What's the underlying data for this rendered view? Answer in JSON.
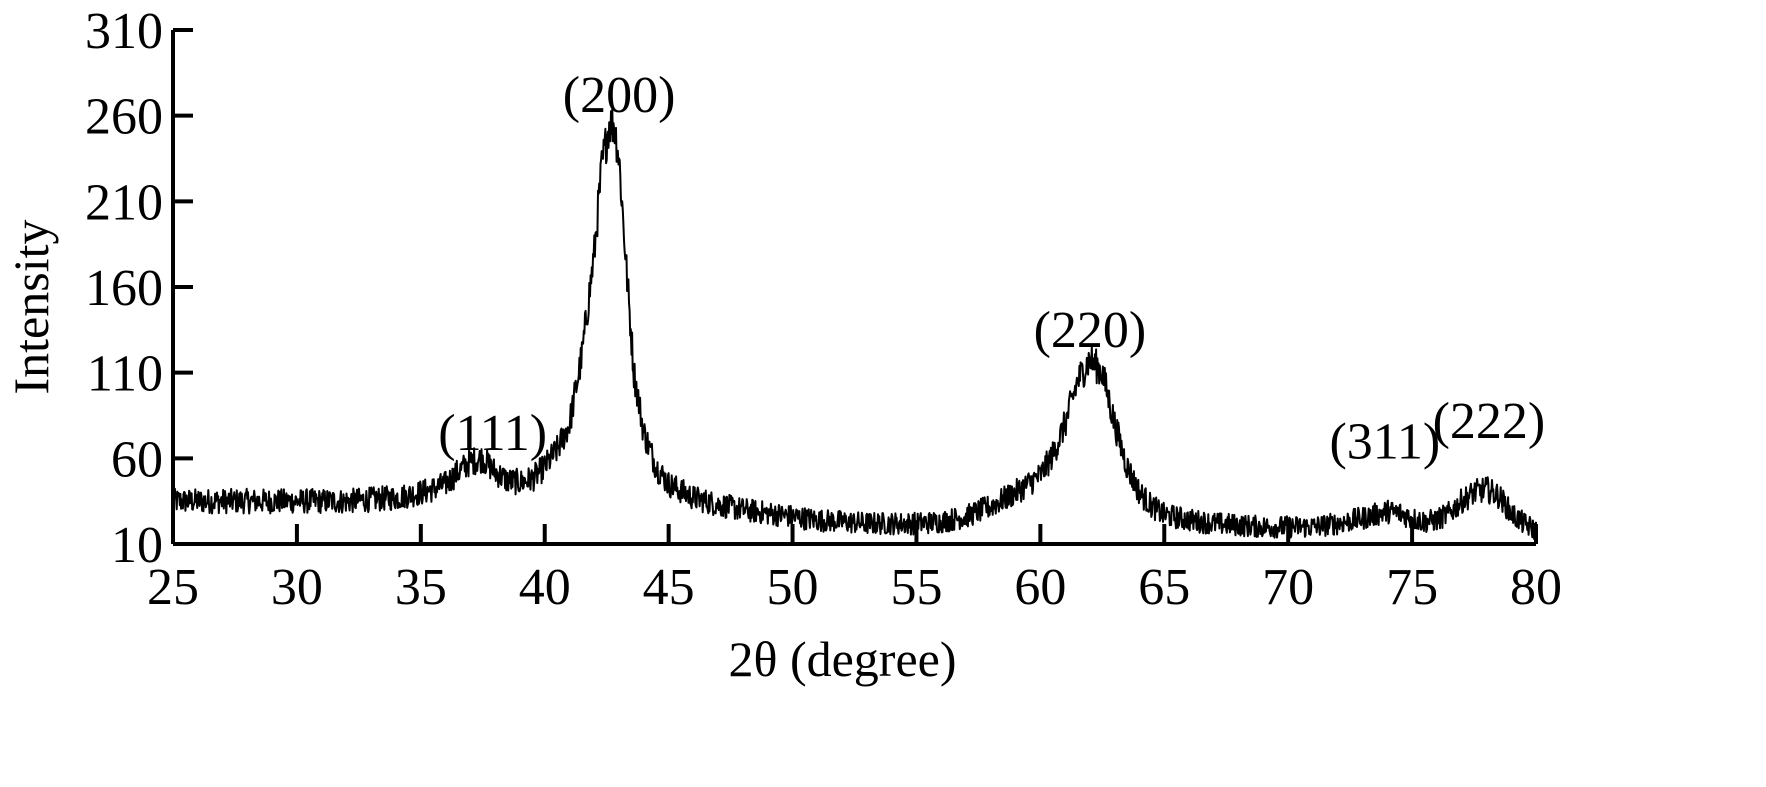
{
  "chart_data": {
    "type": "line",
    "title": "",
    "xlabel": "2θ (degree)",
    "ylabel": "Intensity",
    "xlim": [
      25,
      80
    ],
    "ylim": [
      10,
      310
    ],
    "x_ticks": [
      25,
      30,
      35,
      40,
      45,
      50,
      55,
      60,
      65,
      70,
      75,
      80
    ],
    "y_ticks": [
      10,
      60,
      110,
      160,
      210,
      260,
      310
    ],
    "grid": false,
    "legend": "none",
    "line_color": "#000000",
    "series": [
      {
        "x": [
          25,
          26,
          27,
          28,
          29,
          30,
          31,
          32,
          33,
          34,
          35,
          35.5,
          36,
          36.5,
          37,
          37.5,
          38,
          38.5,
          39,
          39.5,
          40,
          40.5,
          41,
          41.5,
          42,
          42.3,
          42.6,
          42.8,
          43,
          43.3,
          43.6,
          44,
          44.5,
          45,
          46,
          47,
          48,
          49,
          50,
          51,
          52,
          53,
          54,
          55,
          56,
          57,
          58,
          59,
          60,
          60.5,
          61,
          61.5,
          62,
          62.5,
          63,
          63.5,
          64,
          64.5,
          65,
          66,
          67,
          68,
          69,
          70,
          71,
          72,
          73,
          73.5,
          74,
          74.5,
          75,
          75.5,
          76,
          76.5,
          77,
          77.5,
          78,
          78.5,
          79,
          79.5,
          80
        ],
        "y": [
          35,
          35,
          35,
          35,
          35,
          35,
          35,
          35,
          36,
          37,
          40,
          42,
          45,
          52,
          58,
          60,
          52,
          47,
          46,
          48,
          55,
          65,
          80,
          120,
          180,
          230,
          255,
          255,
          235,
          170,
          110,
          75,
          55,
          45,
          37,
          33,
          30,
          28,
          26,
          24,
          23,
          22,
          22,
          22,
          23,
          26,
          32,
          40,
          50,
          62,
          80,
          105,
          118,
          110,
          80,
          55,
          40,
          32,
          27,
          24,
          22,
          21,
          20,
          20,
          20,
          22,
          25,
          27,
          29,
          28,
          25,
          23,
          24,
          28,
          35,
          40,
          42,
          38,
          28,
          22,
          18
        ]
      }
    ],
    "annotations": [
      {
        "text": "(111)",
        "x": 37.9,
        "y": 65
      },
      {
        "text": "(200)",
        "x": 43.0,
        "y": 262
      },
      {
        "text": "(220)",
        "x": 62.0,
        "y": 125
      },
      {
        "text": "(311)",
        "x": 73.9,
        "y": 60
      },
      {
        "text": "(222)",
        "x": 78.1,
        "y": 72
      }
    ]
  }
}
